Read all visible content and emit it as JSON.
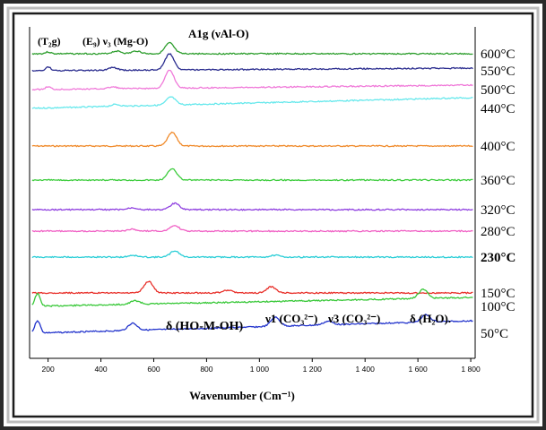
{
  "chart_data": {
    "type": "line",
    "xlabel": "Wavenumber (Cm⁻¹)",
    "ylabel": "",
    "xlim": [
      130,
      1810
    ],
    "x_ticks": [
      200,
      400,
      600,
      800,
      1000,
      1200,
      1400,
      1600,
      1800
    ],
    "x_tick_labels": [
      "200",
      "400",
      "600",
      "800",
      "1 000",
      "1 200",
      "1 400",
      "1 600",
      "1 800"
    ],
    "grid": false,
    "legend": "none",
    "series": [
      {
        "name": "600°C",
        "color": "#2e9e2e",
        "baseline": 0,
        "peaks": [
          [
            200,
            2
          ],
          [
            460,
            3
          ],
          [
            535,
            3
          ],
          [
            660,
            12
          ]
        ]
      },
      {
        "name": "550°C",
        "color": "#2b2d8f",
        "baseline": 0,
        "peaks": [
          [
            200,
            4
          ],
          [
            445,
            3
          ],
          [
            660,
            18
          ]
        ]
      },
      {
        "name": "500°C",
        "color": "#f07ad9",
        "baseline": 0,
        "peaks": [
          [
            200,
            3
          ],
          [
            445,
            2
          ],
          [
            660,
            20
          ]
        ]
      },
      {
        "name": "440°C",
        "color": "#66e8ec",
        "baseline": 0,
        "peaks": [
          [
            455,
            2
          ],
          [
            665,
            9
          ]
        ]
      },
      {
        "name": "400°C",
        "color": "#f08a2a",
        "baseline": 0,
        "peaks": [
          [
            670,
            15
          ]
        ]
      },
      {
        "name": "360°C",
        "color": "#3ccc3c",
        "baseline": 0,
        "peaks": [
          [
            670,
            13
          ]
        ]
      },
      {
        "name": "320°C",
        "color": "#8f3fe0",
        "baseline": 0,
        "peaks": [
          [
            520,
            2
          ],
          [
            680,
            7
          ]
        ]
      },
      {
        "name": "280°C",
        "color": "#f05fc4",
        "baseline": 0,
        "peaks": [
          [
            520,
            2
          ],
          [
            680,
            6
          ]
        ]
      },
      {
        "name": "230°C",
        "color": "#27cdd6",
        "baseline": 0,
        "peaks": [
          [
            520,
            2
          ],
          [
            680,
            7
          ],
          [
            1060,
            2
          ]
        ]
      },
      {
        "name": "150°C",
        "color": "#e8302a",
        "baseline": 0,
        "peaks": [
          [
            580,
            13
          ],
          [
            880,
            3
          ],
          [
            1045,
            7
          ]
        ]
      },
      {
        "name": "100°C",
        "color": "#38c838",
        "baseline": 0,
        "peaks": [
          [
            160,
            14
          ],
          [
            530,
            4
          ],
          [
            1620,
            10
          ]
        ]
      },
      {
        "name": "50°C",
        "color": "#2233cc",
        "baseline": 0,
        "peaks": [
          [
            160,
            14
          ],
          [
            520,
            8
          ],
          [
            1060,
            10
          ],
          [
            1260,
            4
          ],
          [
            1630,
            8
          ]
        ]
      }
    ],
    "annotations": [
      {
        "text": "(T₂g)",
        "series": "600°C"
      },
      {
        "text": "(E₉) ν₃ (Mg-O)",
        "series": "600°C"
      },
      {
        "text": "A1g (νAl-O)",
        "series": "600°C"
      },
      {
        "text": "δ (HO-M-OH)",
        "series": "50°C"
      },
      {
        "text": "ν1 (CO₃²⁻)",
        "series": "50°C"
      },
      {
        "text": "ν3 (CO₃²⁻)",
        "series": "50°C"
      },
      {
        "text": "δ (H₂O).",
        "series": "50°C"
      }
    ]
  },
  "colors": {
    "frame_outer": "#2a2a2a",
    "frame_inner": "#ffffff",
    "axis": "#000000"
  }
}
